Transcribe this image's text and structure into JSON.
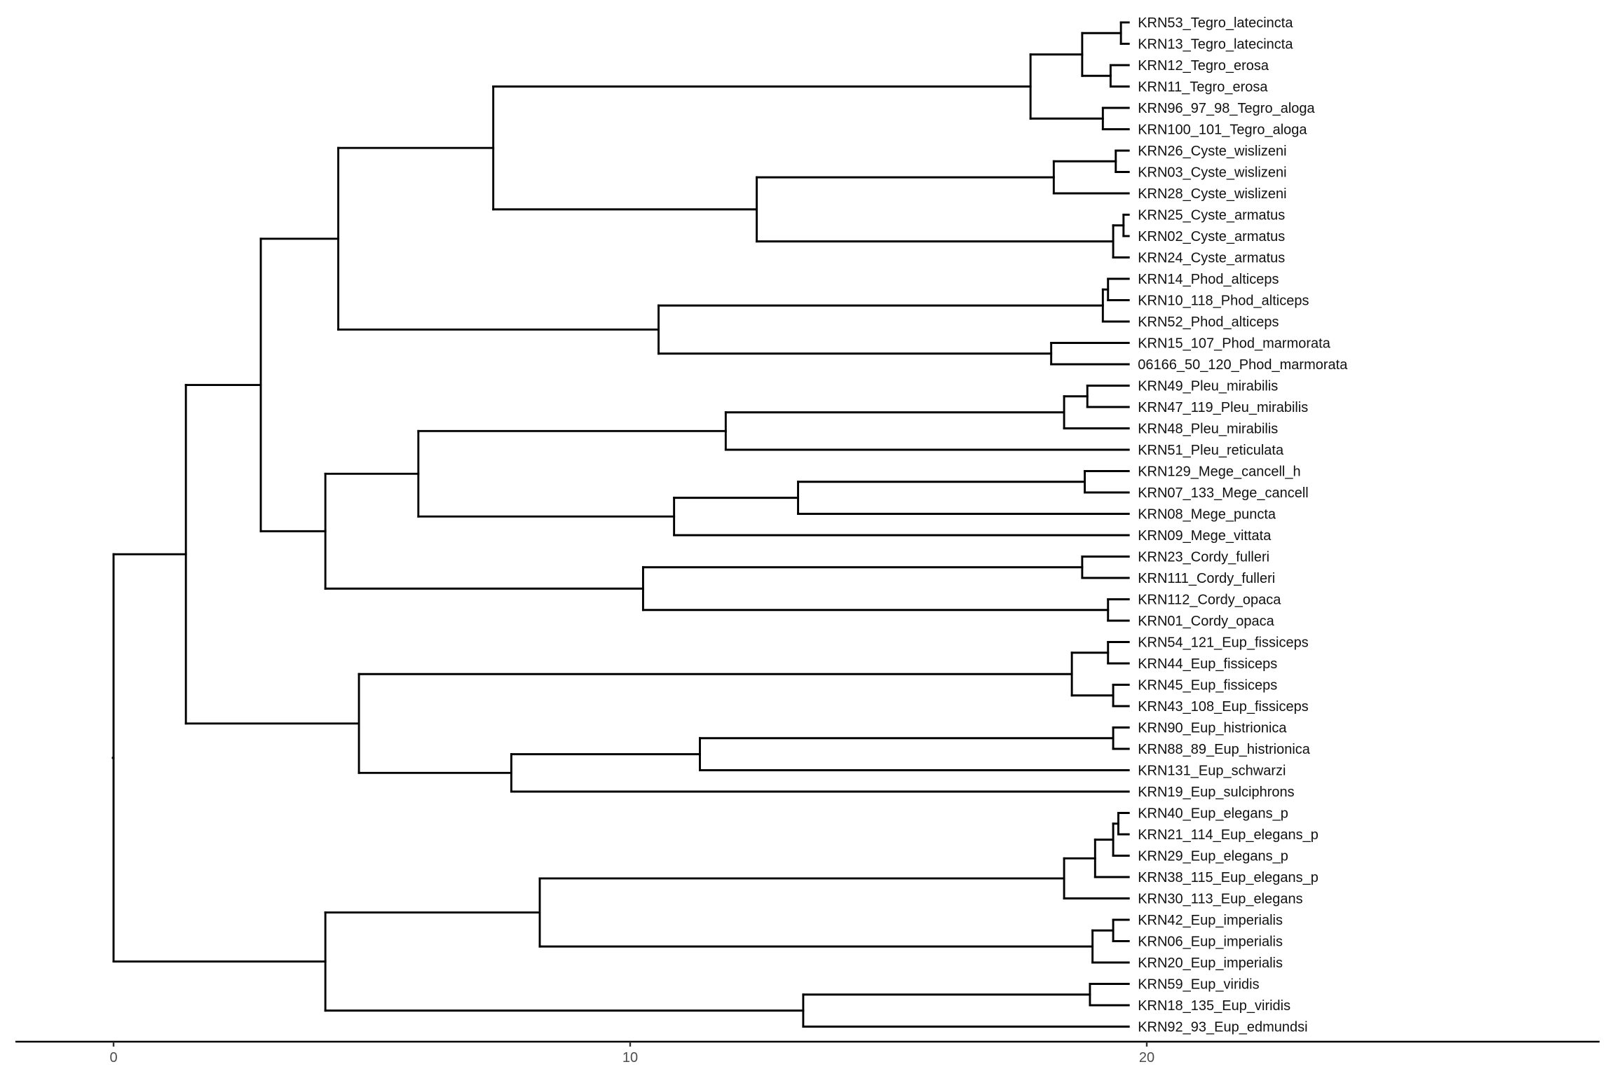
{
  "tree": {
    "name": "",
    "h": 0,
    "c": [
      {
        "h": 1.4,
        "c": [
          {
            "h": 2.85,
            "c": [
              {
                "h": 4.35,
                "c": [
                  {
                    "h": 7.35,
                    "c": [
                      {
                        "h": 17.75,
                        "c": [
                          {
                            "h": 18.75,
                            "c": [
                              {
                                "h": 19.5,
                                "c": [
                                  {
                                    "name": "KRN53_Tegro_latecincta"
                                  },
                                  {
                                    "name": "KRN13_Tegro_latecincta"
                                  }
                                ]
                              },
                              {
                                "h": 19.3,
                                "c": [
                                  {
                                    "name": "KRN12_Tegro_erosa"
                                  },
                                  {
                                    "name": "KRN11_Tegro_erosa"
                                  }
                                ]
                              }
                            ]
                          },
                          {
                            "h": 19.15,
                            "c": [
                              {
                                "name": "KRN96_97_98_Tegro_aloga"
                              },
                              {
                                "name": "KRN100_101_Tegro_aloga"
                              }
                            ]
                          }
                        ]
                      },
                      {
                        "h": 12.45,
                        "c": [
                          {
                            "h": 18.2,
                            "c": [
                              {
                                "h": 19.4,
                                "c": [
                                  {
                                    "name": "KRN26_Cyste_wislizeni"
                                  },
                                  {
                                    "name": "KRN03_Cyste_wislizeni"
                                  }
                                ]
                              },
                              {
                                "name": "KRN28_Cyste_wislizeni"
                              }
                            ]
                          },
                          {
                            "h": 19.35,
                            "c": [
                              {
                                "h": 19.55,
                                "c": [
                                  {
                                    "name": "KRN25_Cyste_armatus"
                                  },
                                  {
                                    "name": "KRN02_Cyste_armatus"
                                  }
                                ]
                              },
                              {
                                "name": "KRN24_Cyste_armatus"
                              }
                            ]
                          }
                        ]
                      }
                    ]
                  },
                  {
                    "h": 10.55,
                    "c": [
                      {
                        "h": 19.15,
                        "c": [
                          {
                            "h": 19.25,
                            "c": [
                              {
                                "name": "KRN14_Phod_alticeps"
                              },
                              {
                                "name": "KRN10_118_Phod_alticeps"
                              }
                            ]
                          },
                          {
                            "name": "KRN52_Phod_alticeps"
                          }
                        ]
                      },
                      {
                        "h": 18.15,
                        "c": [
                          {
                            "name": "KRN15_107_Phod_marmorata"
                          },
                          {
                            "name": "06166_50_120_Phod_marmorata"
                          }
                        ]
                      }
                    ]
                  }
                ]
              },
              {
                "h": 4.1,
                "c": [
                  {
                    "h": 5.9,
                    "c": [
                      {
                        "h": 11.85,
                        "c": [
                          {
                            "h": 18.4,
                            "c": [
                              {
                                "h": 18.85,
                                "c": [
                                  {
                                    "name": "KRN49_Pleu_mirabilis"
                                  },
                                  {
                                    "name": "KRN47_119_Pleu_mirabilis"
                                  }
                                ]
                              },
                              {
                                "name": "KRN48_Pleu_mirabilis"
                              }
                            ]
                          },
                          {
                            "name": "KRN51_Pleu_reticulata"
                          }
                        ]
                      },
                      {
                        "h": 10.85,
                        "c": [
                          {
                            "h": 13.25,
                            "c": [
                              {
                                "h": 18.8,
                                "c": [
                                  {
                                    "name": "KRN129_Mege_cancell_h"
                                  },
                                  {
                                    "name": "KRN07_133_Mege_cancell"
                                  }
                                ]
                              },
                              {
                                "name": "KRN08_Mege_puncta"
                              }
                            ]
                          },
                          {
                            "name": "KRN09_Mege_vittata"
                          }
                        ]
                      }
                    ]
                  },
                  {
                    "h": 10.25,
                    "c": [
                      {
                        "h": 18.75,
                        "c": [
                          {
                            "name": "KRN23_Cordy_fulleri"
                          },
                          {
                            "name": "KRN111_Cordy_fulleri"
                          }
                        ]
                      },
                      {
                        "h": 19.25,
                        "c": [
                          {
                            "name": "KRN112_Cordy_opaca"
                          },
                          {
                            "name": "KRN01_Cordy_opaca"
                          }
                        ]
                      }
                    ]
                  }
                ]
              }
            ]
          },
          {
            "h": 4.75,
            "c": [
              {
                "h": 18.55,
                "c": [
                  {
                    "h": 19.25,
                    "c": [
                      {
                        "name": "KRN54_121_Eup_fissiceps"
                      },
                      {
                        "name": "KRN44_Eup_fissiceps"
                      }
                    ]
                  },
                  {
                    "h": 19.35,
                    "c": [
                      {
                        "name": "KRN45_Eup_fissiceps"
                      },
                      {
                        "name": "KRN43_108_Eup_fissiceps"
                      }
                    ]
                  }
                ]
              },
              {
                "h": 7.7,
                "c": [
                  {
                    "h": 11.35,
                    "c": [
                      {
                        "h": 19.35,
                        "c": [
                          {
                            "name": "KRN90_Eup_histrionica"
                          },
                          {
                            "name": "KRN88_89_Eup_histrionica"
                          }
                        ]
                      },
                      {
                        "name": "KRN131_Eup_schwarzi"
                      }
                    ]
                  },
                  {
                    "name": "KRN19_Eup_sulciphrons"
                  }
                ]
              }
            ]
          }
        ]
      },
      {
        "h": 4.1,
        "c": [
          {
            "h": 8.25,
            "c": [
              {
                "h": 18.4,
                "c": [
                  {
                    "h": 19.0,
                    "c": [
                      {
                        "h": 19.35,
                        "c": [
                          {
                            "h": 19.45,
                            "c": [
                              {
                                "name": "KRN40_Eup_elegans_p"
                              },
                              {
                                "name": "KRN21_114_Eup_elegans_p"
                              }
                            ]
                          },
                          {
                            "name": "KRN29_Eup_elegans_p"
                          }
                        ]
                      },
                      {
                        "name": "KRN38_115_Eup_elegans_p"
                      }
                    ]
                  },
                  {
                    "name": "KRN30_113_Eup_elegans"
                  }
                ]
              },
              {
                "h": 18.95,
                "c": [
                  {
                    "h": 19.35,
                    "c": [
                      {
                        "name": "KRN42_Eup_imperialis"
                      },
                      {
                        "name": "KRN06_Eup_imperialis"
                      }
                    ]
                  },
                  {
                    "name": "KRN20_Eup_imperialis"
                  }
                ]
              }
            ]
          },
          {
            "h": 13.35,
            "c": [
              {
                "h": 18.9,
                "c": [
                  {
                    "name": "KRN59_Eup_viridis"
                  },
                  {
                    "name": "KRN18_135_Eup_viridis"
                  }
                ]
              },
              {
                "name": "KRN92_93_Eup_edmundsi"
              }
            ]
          }
        ]
      }
    ]
  },
  "tip_height": 19.65,
  "axis": {
    "ticks": [
      0,
      10,
      20
    ],
    "tick_labels": [
      "0",
      "10",
      "20"
    ],
    "range": [
      -1.9,
      28.7
    ]
  },
  "colors": {
    "branch": "#000000",
    "label": "#111111",
    "tick_label": "#4d4d4d",
    "background": "#ffffff"
  }
}
